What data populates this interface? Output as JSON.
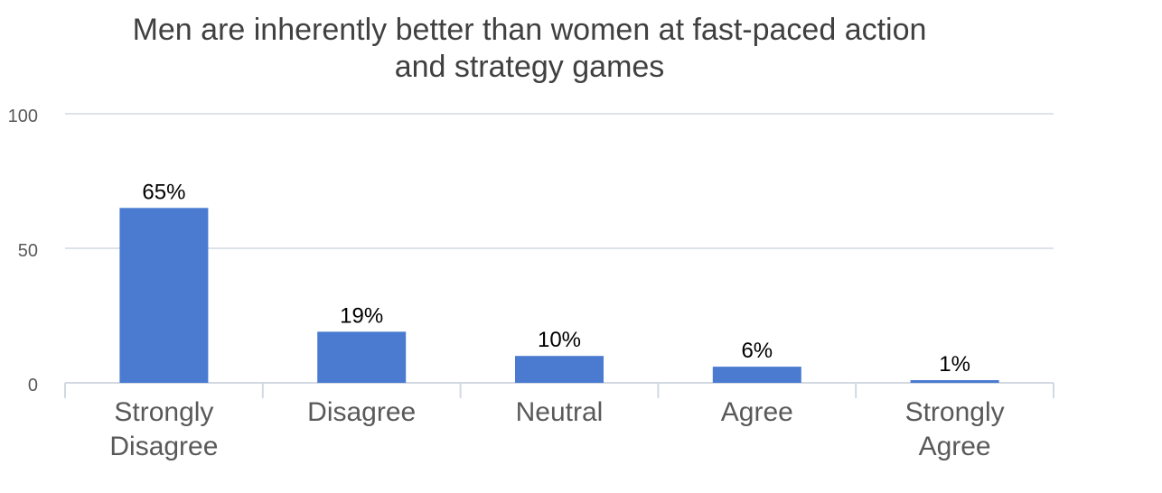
{
  "chart_data": {
    "type": "bar",
    "title_lines": [
      "Men are inherently better than women at fast-paced action",
      "and strategy games"
    ],
    "categories": [
      [
        "Strongly",
        "Disagree"
      ],
      [
        "Disagree"
      ],
      [
        "Neutral"
      ],
      [
        "Agree"
      ],
      [
        "Strongly",
        "Agree"
      ]
    ],
    "values": [
      65,
      19,
      10,
      6,
      1
    ],
    "data_labels": [
      "65%",
      "19%",
      "10%",
      "6%",
      "1%"
    ],
    "yticks": [
      0,
      50,
      100
    ],
    "ylim": [
      0,
      100
    ],
    "xlabel": "",
    "ylabel": "",
    "grid": true,
    "legend": "none",
    "colors": {
      "bar": "#4a7bd0",
      "grid": "#d3d9e2"
    }
  }
}
